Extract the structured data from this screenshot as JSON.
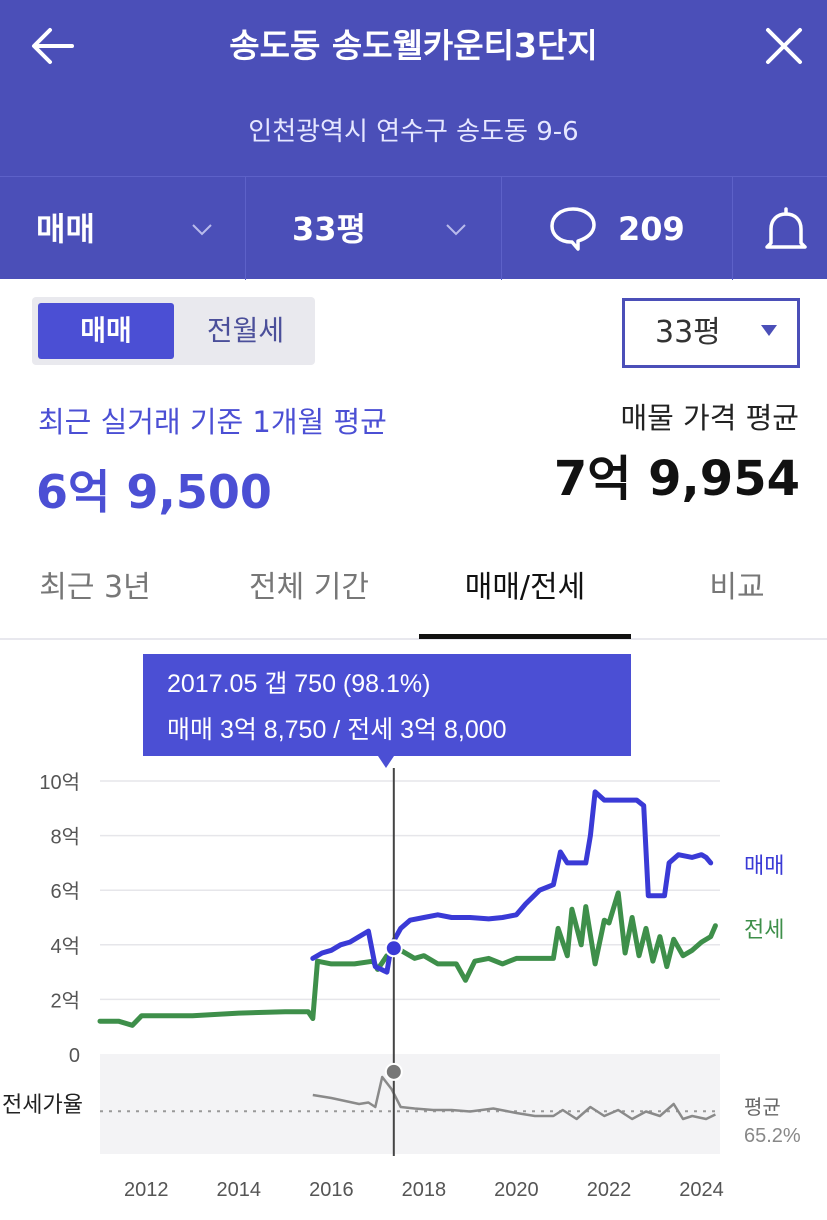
{
  "header": {
    "back_icon": "arrow-left-icon",
    "title": "송도동 송도웰카운티3단지",
    "close_icon": "close-icon",
    "address": "인천광역시 연수구 송도동 9-6"
  },
  "toolbar": {
    "trade_type": "매매",
    "size": "33평",
    "comment_count": "209",
    "comment_icon": "speech-bubble-icon",
    "bell_icon": "bell-icon",
    "chevron_icon": "chevron-down-icon"
  },
  "segment": {
    "options": [
      "매매",
      "전월세"
    ],
    "selected": "매매"
  },
  "size_select": {
    "value": "33평"
  },
  "summary": {
    "recent_label": "최근 실거래 기준 1개월 평균",
    "recent_price": "6억 9,500",
    "listing_label": "매물 가격 평균",
    "listing_price": "7억 9,954"
  },
  "tabs": [
    {
      "label": "최근 3년",
      "active": false
    },
    {
      "label": "전체 기간",
      "active": false
    },
    {
      "label": "매매/전세",
      "active": true
    },
    {
      "label": "비교",
      "active": false
    }
  ],
  "colors": {
    "brand": "#4b4fb8",
    "accent": "#4b4fd4",
    "sale": "#3a3ad6",
    "jeonse": "#3e8f4a",
    "ratio": "#8a8a8a"
  },
  "chart_data": {
    "type": "line",
    "ylabel": "",
    "xlabel": "",
    "ylim": [
      0,
      10
    ],
    "yticks": [
      "10억",
      "8억",
      "6억",
      "4억",
      "2억",
      "0"
    ],
    "yticks_values": [
      10,
      8,
      6,
      4,
      2,
      0
    ],
    "xticks": [
      "2012",
      "2014",
      "2016",
      "2018",
      "2020",
      "2022",
      "2024"
    ],
    "xticks_values": [
      2012,
      2014,
      2016,
      2018,
      2020,
      2022,
      2024
    ],
    "xlim": [
      2011,
      2024.4
    ],
    "grid": true,
    "legend": "right",
    "series": [
      {
        "name": "매매",
        "unit": "억",
        "points": [
          [
            2015.6,
            3.5
          ],
          [
            2015.8,
            3.7
          ],
          [
            2016.0,
            3.8
          ],
          [
            2016.2,
            4.0
          ],
          [
            2016.4,
            4.1
          ],
          [
            2016.6,
            4.3
          ],
          [
            2016.8,
            4.5
          ],
          [
            2016.95,
            3.2
          ],
          [
            2017.2,
            3.0
          ],
          [
            2017.3,
            4.0
          ],
          [
            2017.5,
            4.6
          ],
          [
            2017.7,
            4.9
          ],
          [
            2018.0,
            5.0
          ],
          [
            2018.3,
            5.1
          ],
          [
            2018.6,
            5.0
          ],
          [
            2019.0,
            5.0
          ],
          [
            2019.4,
            4.95
          ],
          [
            2019.7,
            5.0
          ],
          [
            2020.0,
            5.1
          ],
          [
            2020.2,
            5.5
          ],
          [
            2020.5,
            6.0
          ],
          [
            2020.8,
            6.2
          ],
          [
            2020.95,
            7.4
          ],
          [
            2021.1,
            7.0
          ],
          [
            2021.5,
            7.0
          ],
          [
            2021.6,
            8.0
          ],
          [
            2021.7,
            9.6
          ],
          [
            2021.9,
            9.3
          ],
          [
            2022.2,
            9.3
          ],
          [
            2022.6,
            9.3
          ],
          [
            2022.75,
            9.1
          ],
          [
            2022.85,
            5.8
          ],
          [
            2023.0,
            5.8
          ],
          [
            2023.2,
            5.8
          ],
          [
            2023.3,
            7.0
          ],
          [
            2023.5,
            7.3
          ],
          [
            2023.8,
            7.2
          ],
          [
            2024.0,
            7.3
          ],
          [
            2024.1,
            7.2
          ],
          [
            2024.2,
            7.0
          ]
        ]
      },
      {
        "name": "전세",
        "unit": "억",
        "points": [
          [
            2011.0,
            1.2
          ],
          [
            2011.4,
            1.2
          ],
          [
            2011.7,
            1.05
          ],
          [
            2011.9,
            1.4
          ],
          [
            2012.5,
            1.4
          ],
          [
            2013.0,
            1.4
          ],
          [
            2014.0,
            1.5
          ],
          [
            2015.0,
            1.55
          ],
          [
            2015.5,
            1.55
          ],
          [
            2015.6,
            1.3
          ],
          [
            2015.7,
            3.4
          ],
          [
            2016.0,
            3.3
          ],
          [
            2016.5,
            3.3
          ],
          [
            2016.9,
            3.4
          ],
          [
            2017.0,
            3.1
          ],
          [
            2017.2,
            3.6
          ],
          [
            2017.5,
            3.8
          ],
          [
            2017.8,
            3.5
          ],
          [
            2018.0,
            3.6
          ],
          [
            2018.3,
            3.3
          ],
          [
            2018.7,
            3.3
          ],
          [
            2018.9,
            2.7
          ],
          [
            2019.1,
            3.4
          ],
          [
            2019.4,
            3.5
          ],
          [
            2019.7,
            3.3
          ],
          [
            2020.0,
            3.5
          ],
          [
            2020.4,
            3.5
          ],
          [
            2020.8,
            3.5
          ],
          [
            2020.9,
            4.6
          ],
          [
            2021.1,
            3.6
          ],
          [
            2021.2,
            5.3
          ],
          [
            2021.4,
            4.0
          ],
          [
            2021.5,
            5.4
          ],
          [
            2021.7,
            3.3
          ],
          [
            2021.9,
            4.9
          ],
          [
            2022.0,
            4.8
          ],
          [
            2022.2,
            5.9
          ],
          [
            2022.35,
            3.7
          ],
          [
            2022.5,
            5.0
          ],
          [
            2022.65,
            3.6
          ],
          [
            2022.8,
            4.6
          ],
          [
            2022.95,
            3.4
          ],
          [
            2023.1,
            4.3
          ],
          [
            2023.25,
            3.2
          ],
          [
            2023.4,
            4.2
          ],
          [
            2023.6,
            3.6
          ],
          [
            2023.8,
            3.8
          ],
          [
            2024.0,
            4.1
          ],
          [
            2024.2,
            4.3
          ],
          [
            2024.3,
            4.7
          ]
        ]
      }
    ],
    "ratio": {
      "label": "전세가율",
      "avg_label": "평균",
      "avg_value": "65.2%",
      "avg_percent": 65.2,
      "ylim": [
        40,
        100
      ],
      "points": [
        [
          2015.6,
          76
        ],
        [
          2016.0,
          74
        ],
        [
          2016.3,
          72
        ],
        [
          2016.6,
          70
        ],
        [
          2016.8,
          71
        ],
        [
          2016.95,
          68
        ],
        [
          2017.1,
          88
        ],
        [
          2017.3,
          80
        ],
        [
          2017.5,
          68
        ],
        [
          2017.8,
          67
        ],
        [
          2018.2,
          66
        ],
        [
          2018.6,
          66
        ],
        [
          2019.0,
          65
        ],
        [
          2019.5,
          67
        ],
        [
          2020.0,
          64
        ],
        [
          2020.4,
          62
        ],
        [
          2020.8,
          62
        ],
        [
          2021.0,
          66
        ],
        [
          2021.3,
          60
        ],
        [
          2021.6,
          68
        ],
        [
          2021.9,
          62
        ],
        [
          2022.2,
          66
        ],
        [
          2022.5,
          60
        ],
        [
          2022.8,
          65
        ],
        [
          2023.1,
          62
        ],
        [
          2023.4,
          70
        ],
        [
          2023.6,
          60
        ],
        [
          2023.8,
          62
        ],
        [
          2024.1,
          60
        ],
        [
          2024.3,
          63
        ]
      ]
    },
    "tooltip": {
      "line1": "2017.05  갭 750 (98.1%)",
      "line2": "매매 3억 8,750 / 전세 3억 8,000",
      "x": 2017.35,
      "sale": 3.875,
      "ratio": 98.1
    }
  }
}
